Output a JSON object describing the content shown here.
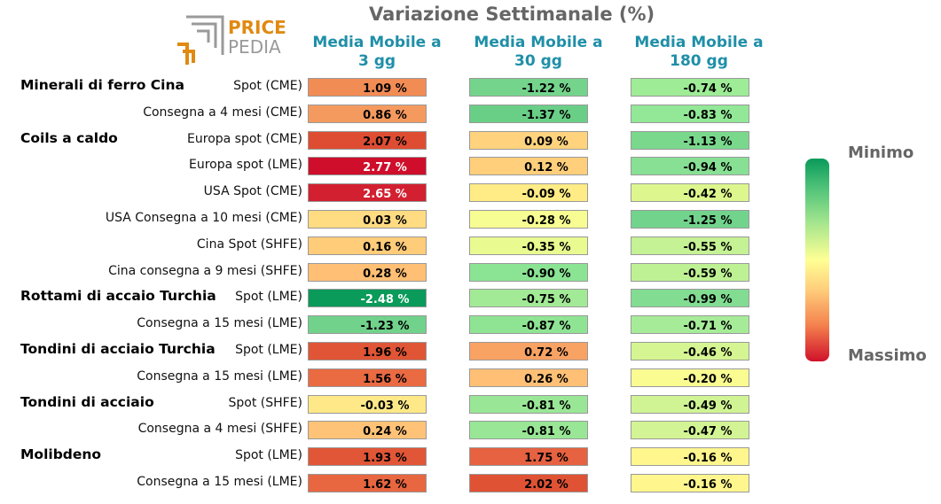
{
  "title": "Variazione Settimanale (%)",
  "logo": {
    "line1": "PRICE",
    "line2": "PEDIA"
  },
  "chart_data": {
    "type": "table",
    "columns": [
      "Media Mobile a 3 gg",
      "Media Mobile a 30 gg",
      "Media Mobile a 180 gg"
    ],
    "column_lines": [
      [
        "Media Mobile a",
        "3 gg"
      ],
      [
        "Media Mobile a",
        "30 gg"
      ],
      [
        "Media Mobile a",
        "180 gg"
      ]
    ],
    "groups": [
      {
        "name": "Minerali di ferro Cina",
        "row": 0
      },
      {
        "name": "Coils a caldo",
        "row": 2
      },
      {
        "name": "Rottami di accaio Turchia",
        "row": 8
      },
      {
        "name": "Tondini di acciaio Turchia",
        "row": 10
      },
      {
        "name": "Tondini di acciaio",
        "row": 12
      },
      {
        "name": "Molibdeno",
        "row": 14
      }
    ],
    "rows": [
      {
        "label": "Spot (CME)",
        "values": [
          "1.09 %",
          "-1.22 %",
          "-0.74 %"
        ],
        "colors": [
          "#f28c55",
          "#74d48c",
          "#9eec96"
        ]
      },
      {
        "label": "Consegna a 4 mesi (CME)",
        "values": [
          "0.86 %",
          "-1.37 %",
          "-0.83 %"
        ],
        "colors": [
          "#f59a5e",
          "#69cf87",
          "#92e896"
        ]
      },
      {
        "label": "Europa spot (CME)",
        "values": [
          "2.07 %",
          "0.09 %",
          "-1.13 %"
        ],
        "colors": [
          "#de4d32",
          "#ffd37e",
          "#7ad88d"
        ]
      },
      {
        "label": "Europa spot (LME)",
        "values": [
          "2.77 %",
          "0.12 %",
          "-0.94 %"
        ],
        "colors": [
          "#ce0e2b",
          "#ffcf7c",
          "#88e094"
        ]
      },
      {
        "label": "USA Spot (CME)",
        "values": [
          "2.65 %",
          "-0.09 %",
          "-0.42 %"
        ],
        "colors": [
          "#d22030",
          "#ffec86",
          "#ddf78e"
        ]
      },
      {
        "label": "USA Consegna a 10 mesi (CME)",
        "values": [
          "0.03 %",
          "-0.28 %",
          "-1.25 %"
        ],
        "colors": [
          "#ffdb82",
          "#f7fd92",
          "#72d38c"
        ]
      },
      {
        "label": "Cina Spot (SHFE)",
        "values": [
          "0.16 %",
          "-0.35 %",
          "-0.55 %"
        ],
        "colors": [
          "#ffcc7a",
          "#e8fa90",
          "#c4f294"
        ]
      },
      {
        "label": "Cina consegna a 9 mesi (SHFE)",
        "values": [
          "0.28 %",
          "-0.90 %",
          "-0.59 %"
        ],
        "colors": [
          "#ffbf74",
          "#8be494",
          "#bef194"
        ]
      },
      {
        "label": "Spot (LME)",
        "values": [
          "-2.48 %",
          "-0.75 %",
          "-0.99 %"
        ],
        "colors": [
          "#0a9a5a",
          "#a2ea96",
          "#82dd92"
        ]
      },
      {
        "label": "Consegna a 15 mesi (LME)",
        "values": [
          "-1.23 %",
          "-0.87 %",
          "-0.71 %"
        ],
        "colors": [
          "#70d28b",
          "#8fe494",
          "#a6ec98"
        ]
      },
      {
        "label": "Spot (LME)",
        "values": [
          "1.96 %",
          "0.72 %",
          "-0.46 %"
        ],
        "colors": [
          "#e05535",
          "#f8a264",
          "#d5f592"
        ]
      },
      {
        "label": "Consegna a 15 mesi (LME)",
        "values": [
          "1.56 %",
          "0.26 %",
          "-0.20 %"
        ],
        "colors": [
          "#ea6a42",
          "#ffc076",
          "#fafc92"
        ]
      },
      {
        "label": "Spot (SHFE)",
        "values": [
          "-0.03 %",
          "-0.81 %",
          "-0.49 %"
        ],
        "colors": [
          "#ffe888",
          "#99e796",
          "#d0f494"
        ]
      },
      {
        "label": "Consegna a 4 mesi (SHFE)",
        "values": [
          "0.24 %",
          "-0.81 %",
          "-0.47 %"
        ],
        "colors": [
          "#ffc378",
          "#99e796",
          "#d3f494"
        ]
      },
      {
        "label": "Spot (LME)",
        "values": [
          "1.93 %",
          "1.75 %",
          "-0.16 %"
        ],
        "colors": [
          "#e15636",
          "#e66240",
          "#fff68e"
        ]
      },
      {
        "label": "Consegna a 15 mesi (LME)",
        "values": [
          "1.62 %",
          "2.02 %",
          "-0.16 %"
        ],
        "colors": [
          "#e86640",
          "#e05234",
          "#fff68e"
        ]
      }
    ],
    "legend": {
      "min_label": "Minimo",
      "max_label": "Massimo",
      "placement": "right"
    }
  }
}
